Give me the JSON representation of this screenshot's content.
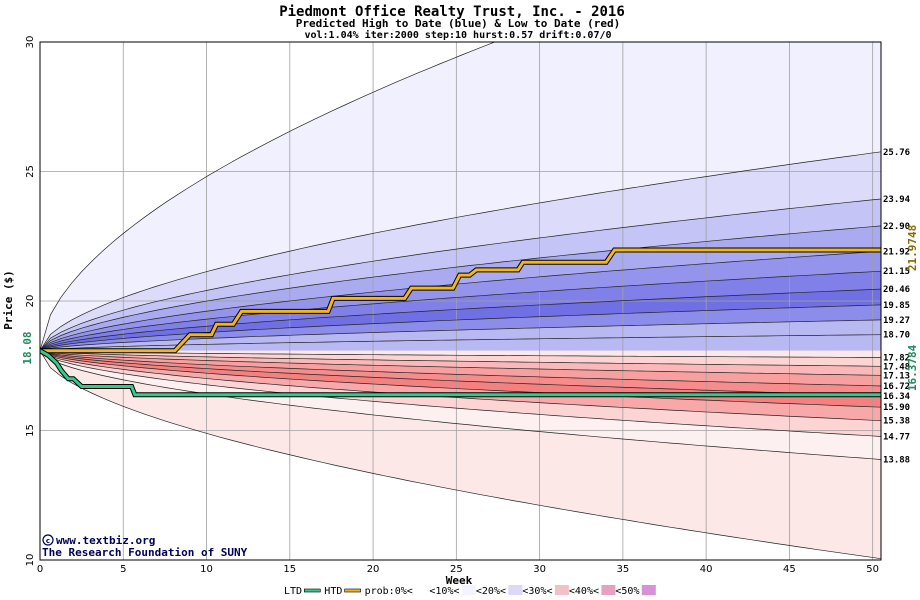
{
  "chart_data": {
    "type": "area",
    "title": "Piedmont Office Realty Trust, Inc. - 2016",
    "subtitle": "Predicted High to Date (blue) &  Low to Date (red)",
    "params": "vol:1.04% iter:2000 step:10 hurst:0.57 drift:0.07/0",
    "xlabel": "Week",
    "ylabel": "Price ($)",
    "xlim": [
      0,
      50.5
    ],
    "ylim": [
      10,
      30
    ],
    "x_ticks": [
      "0",
      "5",
      "10",
      "15",
      "20",
      "25",
      "30",
      "35",
      "40",
      "45",
      "50"
    ],
    "y_ticks": [
      "10",
      "15",
      "20",
      "25",
      "30"
    ],
    "start_price": 18.08,
    "start_label": "18.08",
    "high_levels": [
      {
        "label": "25.76",
        "value": 25.76
      },
      {
        "label": "23.94",
        "value": 23.94
      },
      {
        "label": "22.90",
        "value": 22.9
      },
      {
        "label": "21.92",
        "value": 21.92
      },
      {
        "label": "21.15",
        "value": 21.15
      },
      {
        "label": "20.46",
        "value": 20.46
      },
      {
        "label": "19.85",
        "value": 19.85
      },
      {
        "label": "19.27",
        "value": 19.27
      },
      {
        "label": "18.70",
        "value": 18.7
      }
    ],
    "low_levels": [
      {
        "label": "17.82",
        "value": 17.82
      },
      {
        "label": "17.48",
        "value": 17.48
      },
      {
        "label": "17.13",
        "value": 17.13
      },
      {
        "label": "16.72",
        "value": 16.72
      },
      {
        "label": "16.34",
        "value": 16.34
      },
      {
        "label": "15.90",
        "value": 15.9
      },
      {
        "label": "15.38",
        "value": 15.38
      },
      {
        "label": "14.77",
        "value": 14.77
      },
      {
        "label": "13.88",
        "value": 13.88
      }
    ],
    "outer_max": 35.0,
    "outer_min": 10.05,
    "htd_value_label": "21.9748",
    "ltd_value_label": "16.3784",
    "htd_series": [
      [
        0,
        18.08
      ],
      [
        8.1,
        18.08
      ],
      [
        9.0,
        18.7
      ],
      [
        10.3,
        18.7
      ],
      [
        10.6,
        19.1
      ],
      [
        11.6,
        19.1
      ],
      [
        12.1,
        19.6
      ],
      [
        17.3,
        19.6
      ],
      [
        17.6,
        20.1
      ],
      [
        21.9,
        20.1
      ],
      [
        22.3,
        20.5
      ],
      [
        24.8,
        20.5
      ],
      [
        25.2,
        21.0
      ],
      [
        25.8,
        21.0
      ],
      [
        26.2,
        21.2
      ],
      [
        28.7,
        21.2
      ],
      [
        29.0,
        21.5
      ],
      [
        34.0,
        21.5
      ],
      [
        34.5,
        21.97
      ],
      [
        50.5,
        21.97
      ]
    ],
    "ltd_series": [
      [
        0,
        18.08
      ],
      [
        0.5,
        17.9
      ],
      [
        1.0,
        17.6
      ],
      [
        1.3,
        17.3
      ],
      [
        1.7,
        17.0
      ],
      [
        2.0,
        17.0
      ],
      [
        2.5,
        16.7
      ],
      [
        5.5,
        16.7
      ],
      [
        5.7,
        16.38
      ],
      [
        50.5,
        16.38
      ]
    ],
    "colors": {
      "high_bands": [
        "#f0f0ff",
        "#dcdcfa",
        "#c4c4f6",
        "#aaaaf0",
        "#9494ec",
        "#8080e8",
        "#7070e4",
        "#8c8cea",
        "#b8b8f2"
      ],
      "low_bands": [
        "#fde8e8",
        "#fcd4d4",
        "#fab8b8",
        "#f8a0a0",
        "#f68c8c",
        "#f48080",
        "#f8a8a8",
        "#fcd4d4",
        "#fdf0f0"
      ],
      "htd": "#f2b51a",
      "ltd": "#2ecc8e",
      "htd_label": "#8a6a00",
      "ltd_label": "#1f8a5e"
    },
    "credit_lines": [
      "www.textbiz.org",
      "The Research Foundation of SUNY"
    ],
    "legend": [
      {
        "label": "LTD",
        "type": "line",
        "color": "#2ecc8e"
      },
      {
        "label": "HTD",
        "type": "line",
        "color": "#f2b51a"
      },
      {
        "label": "prob:0%<",
        "type": "swatch",
        "color": "#ffffff"
      },
      {
        "label": "<10%<",
        "type": "swatch",
        "color": "#f4f4ff"
      },
      {
        "label": "<20%<",
        "type": "swatch",
        "color": "#ddd8f8"
      },
      {
        "label": "<30%<",
        "type": "swatch",
        "color": "#f4c0c8"
      },
      {
        "label": "<40%<",
        "type": "swatch",
        "color": "#e8a0c0"
      },
      {
        "label": "<50%",
        "type": "swatch",
        "color": "#d890d8"
      }
    ]
  }
}
